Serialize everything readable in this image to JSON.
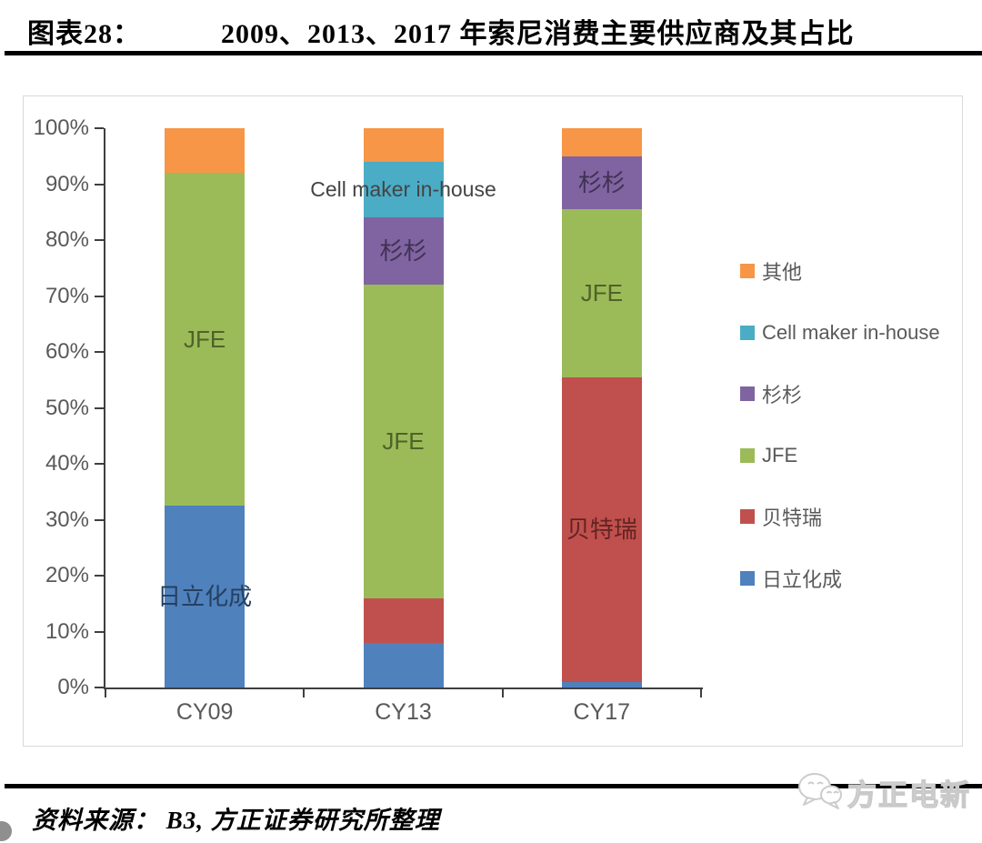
{
  "header": {
    "figure_label": "图表28：",
    "title": "2009、2013、2017 年索尼消费主要供应商及其占比"
  },
  "chart_data": {
    "type": "bar",
    "subtype": "stacked-100-percent",
    "title": "2009、2013、2017 年索尼消费主要供应商及其占比",
    "xlabel": "",
    "ylabel": "",
    "ylim": [
      0,
      100
    ],
    "grid": false,
    "categories": [
      "CY09",
      "CY13",
      "CY17"
    ],
    "series": [
      {
        "name": "日立化成",
        "color": "#4F81BD",
        "label_color": "#254061",
        "values": [
          32.5,
          8,
          1
        ]
      },
      {
        "name": "贝特瑞",
        "color": "#C0504D",
        "label_color": "#632423",
        "values": [
          0,
          8,
          54.5
        ]
      },
      {
        "name": "JFE",
        "color": "#9BBB59",
        "label_color": "#4F6228",
        "values": [
          59.5,
          56,
          30
        ]
      },
      {
        "name": "杉杉",
        "color": "#8064A2",
        "label_color": "#403152",
        "values": [
          0,
          12,
          9.5
        ]
      },
      {
        "name": "Cell maker in-house",
        "color": "#4BACC6",
        "label_color": "#444444",
        "values": [
          0,
          10,
          0
        ]
      },
      {
        "name": "其他",
        "color": "#F79646",
        "label_color": "#444444",
        "values": [
          8,
          6,
          5
        ]
      }
    ],
    "bar_labels": [
      {
        "category": "CY09",
        "series": "日立化成",
        "text": "日立化成"
      },
      {
        "category": "CY09",
        "series": "JFE",
        "text": "JFE"
      },
      {
        "category": "CY13",
        "series": "JFE",
        "text": "JFE"
      },
      {
        "category": "CY13",
        "series": "杉杉",
        "text": "杉杉"
      },
      {
        "category": "CY17",
        "series": "贝特瑞",
        "text": "贝特瑞"
      },
      {
        "category": "CY17",
        "series": "JFE",
        "text": "JFE"
      },
      {
        "category": "CY17",
        "series": "杉杉",
        "text": "杉杉"
      }
    ],
    "annotation": {
      "text": "Cell maker in-house",
      "category": "CY13",
      "series": "Cell maker in-house"
    },
    "y_ticks": [
      "0%",
      "10%",
      "20%",
      "30%",
      "40%",
      "50%",
      "60%",
      "70%",
      "80%",
      "90%",
      "100%"
    ],
    "legend": {
      "position": "right",
      "items": [
        {
          "label": "其他",
          "color": "#F79646"
        },
        {
          "label": "Cell maker in-house",
          "color": "#4BACC6"
        },
        {
          "label": "杉杉",
          "color": "#8064A2"
        },
        {
          "label": "JFE",
          "color": "#9BBB59"
        },
        {
          "label": "贝特瑞",
          "color": "#C0504D"
        },
        {
          "label": "日立化成",
          "color": "#4F81BD"
        }
      ]
    }
  },
  "footer": {
    "source_label": "资料来源：",
    "source_text": "B3, 方正证券研究所整理",
    "logo_text": "方正电新",
    "logo_icon": "chat-bubbles-icon"
  }
}
